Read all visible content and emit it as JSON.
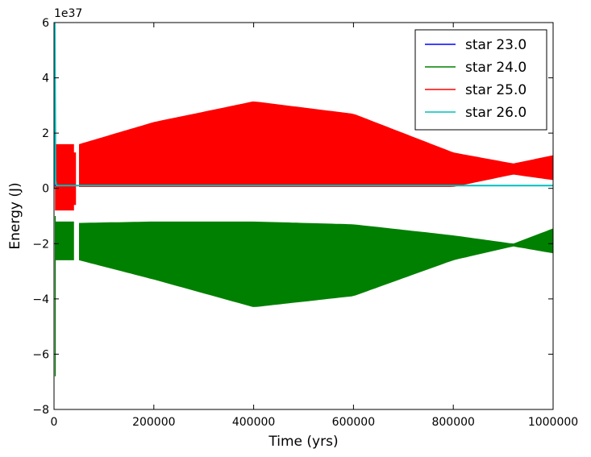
{
  "chart_data": {
    "type": "area",
    "title": "",
    "xlabel": "Time (yrs)",
    "ylabel": "Energy (J)",
    "y_offset_label": "1e37",
    "xlim": [
      0,
      1000000
    ],
    "ylim": [
      -8,
      6
    ],
    "y_scale_factor": 1e+37,
    "xticks": [
      "0",
      "200000",
      "400000",
      "600000",
      "800000",
      "1000000"
    ],
    "xtick_values": [
      0,
      200000,
      400000,
      600000,
      800000,
      1000000
    ],
    "yticks": [
      "−8",
      "−6",
      "−4",
      "−2",
      "0",
      "2",
      "4",
      "6"
    ],
    "ytick_values": [
      -8,
      -6,
      -4,
      -2,
      0,
      2,
      4,
      6
    ],
    "grid": false,
    "legend_position": "top-right",
    "series": [
      {
        "name": "star 23.0",
        "color": "#0000ff",
        "style": "line",
        "x": [
          0,
          50000,
          200000,
          400000,
          600000,
          800000,
          1000000
        ],
        "y": [
          0.1,
          0.1,
          0.1,
          0.1,
          0.1,
          0.1,
          0.1
        ]
      },
      {
        "name": "star 24.0",
        "color": "#008000",
        "style": "band",
        "x": [
          50000,
          200000,
          400000,
          600000,
          800000,
          920000,
          1000000
        ],
        "upper": [
          -1.25,
          -1.2,
          -1.2,
          -1.3,
          -1.7,
          -2.0,
          -1.45
        ],
        "lower": [
          -2.6,
          -3.3,
          -4.3,
          -3.9,
          -2.6,
          -2.1,
          -2.35
        ]
      },
      {
        "name": "star 25.0",
        "color": "#ff0000",
        "style": "band",
        "x": [
          50000,
          200000,
          400000,
          600000,
          800000,
          920000,
          1000000
        ],
        "upper": [
          1.6,
          2.4,
          3.15,
          2.7,
          1.3,
          0.9,
          1.2
        ],
        "lower": [
          0.05,
          0.05,
          0.05,
          0.05,
          0.05,
          0.5,
          0.3
        ]
      },
      {
        "name": "star 26.0",
        "color": "#00bfbf",
        "style": "line",
        "x": [
          0,
          1500,
          3000,
          5000,
          50000,
          1000000
        ],
        "y": [
          0,
          6.0,
          0.3,
          0.1,
          0.1,
          0.1
        ]
      }
    ]
  }
}
